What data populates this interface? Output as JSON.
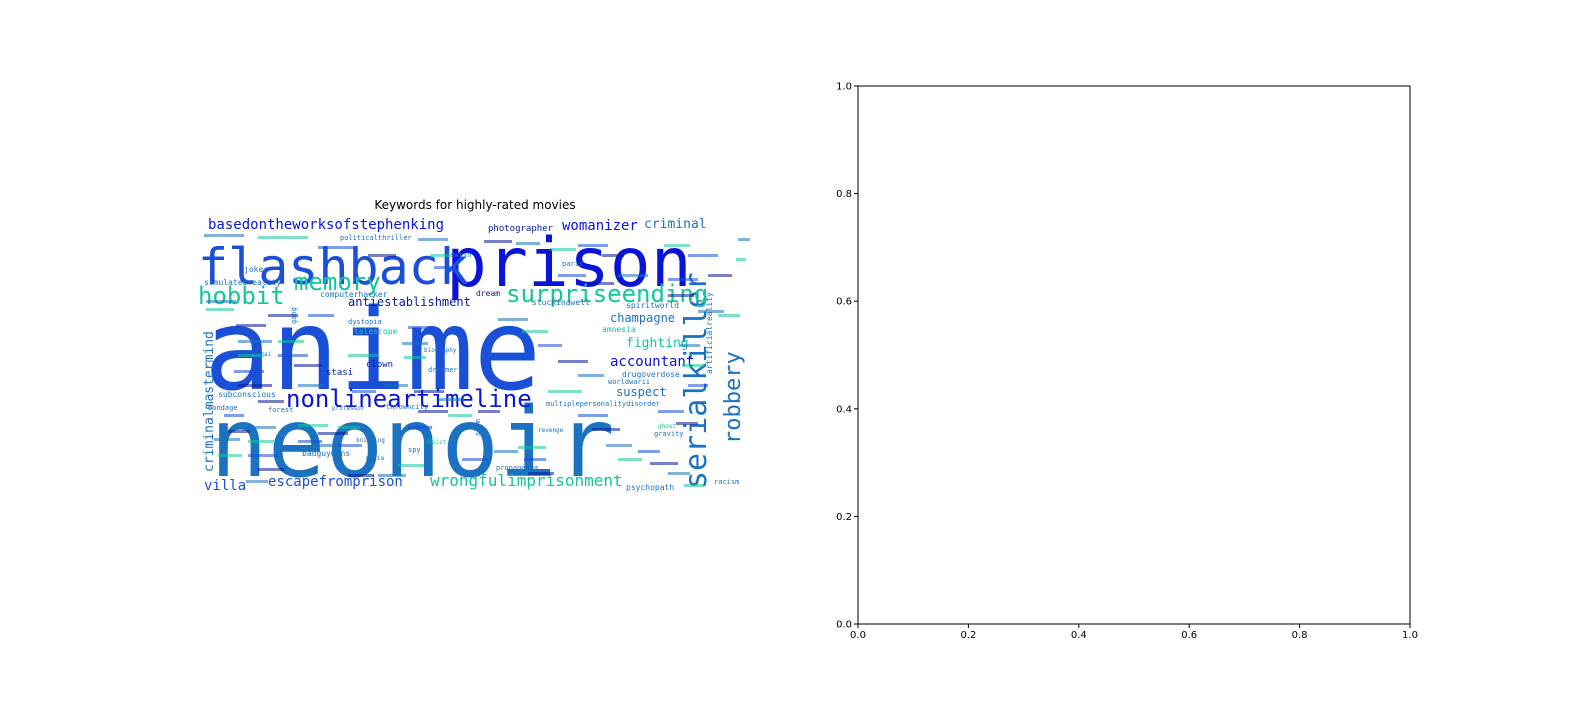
{
  "chart_data": [
    {
      "type": "wordcloud",
      "title": "Keywords for highly-rated movies",
      "colors": {
        "dark_blue": "#0a14d8",
        "blue": "#1a4fd8",
        "steel_blue": "#1a72c0",
        "teal": "#12c79a",
        "navy": "#0a1a9a"
      },
      "words": [
        {
          "text": "anime",
          "color": "#1a4fd8"
        },
        {
          "text": "neonoir",
          "color": "#1a72c0"
        },
        {
          "text": "prison",
          "color": "#0a14d8"
        },
        {
          "text": "flashback",
          "color": "#1a4fd8"
        },
        {
          "text": "serialkiller",
          "color": "#1a72c0"
        },
        {
          "text": "surpriseending",
          "color": "#12c79a"
        },
        {
          "text": "nonlineartimeline",
          "color": "#0a14d8"
        },
        {
          "text": "memory",
          "color": "#12c79a"
        },
        {
          "text": "hobbit",
          "color": "#12c79a"
        },
        {
          "text": "robbery",
          "color": "#1a72c0"
        },
        {
          "text": "wrongfulimprisonment",
          "color": "#12c79a"
        },
        {
          "text": "escapefromprison",
          "color": "#1a4fd8"
        },
        {
          "text": "basedontheworksofstephenking",
          "color": "#0a14d8"
        },
        {
          "text": "criminalmastermind",
          "color": "#1a72c0"
        },
        {
          "text": "womanizer",
          "color": "#0a14d8"
        },
        {
          "text": "criminal",
          "color": "#1a72c0"
        },
        {
          "text": "accountant",
          "color": "#0a14d8"
        },
        {
          "text": "champagne",
          "color": "#1a72c0"
        },
        {
          "text": "fighting",
          "color": "#12c79a"
        },
        {
          "text": "suspect",
          "color": "#1a72c0"
        },
        {
          "text": "villa",
          "color": "#1a4fd8"
        },
        {
          "text": "antiestablishment",
          "color": "#0a1a9a"
        },
        {
          "text": "photographer",
          "color": "#0a1a9a"
        },
        {
          "text": "simulatedreality",
          "color": "#1a72c0"
        },
        {
          "text": "computerhacker",
          "color": "#1a72c0"
        },
        {
          "text": "drugoverdose",
          "color": "#1a72c0"
        },
        {
          "text": "subconscious",
          "color": "#1a72c0"
        },
        {
          "text": "badguywins",
          "color": "#1a72c0"
        },
        {
          "text": "psychopath",
          "color": "#1a72c0"
        },
        {
          "text": "clown",
          "color": "#0a1a9a"
        },
        {
          "text": "stasi",
          "color": "#0a1a9a"
        },
        {
          "text": "spiritworld",
          "color": "#1a72c0"
        },
        {
          "text": "stuckinawell",
          "color": "#1a72c0"
        },
        {
          "text": "artificialreality",
          "color": "#1a72c0"
        },
        {
          "text": "joker",
          "color": "#1a72c0"
        },
        {
          "text": "dream",
          "color": "#0a1a9a"
        },
        {
          "text": "forest",
          "color": "#1a72c0"
        },
        {
          "text": "jewish",
          "color": "#1a72c0"
        },
        {
          "text": "spy",
          "color": "#1a72c0"
        },
        {
          "text": "slum",
          "color": "#1a72c0"
        },
        {
          "text": "bondage",
          "color": "#1a72c0"
        },
        {
          "text": "propaganda",
          "color": "#1a72c0"
        },
        {
          "text": "multiplepersonalitydisorder",
          "color": "#1a72c0"
        },
        {
          "text": "gang",
          "color": "#1a72c0"
        },
        {
          "text": "gravity",
          "color": "#1a72c0"
        },
        {
          "text": "paris",
          "color": "#1a72c0"
        },
        {
          "text": "racism",
          "color": "#1a72c0"
        },
        {
          "text": "politicalthriller",
          "color": "#1a72c0"
        },
        {
          "text": "dreamer",
          "color": "#1a72c0"
        },
        {
          "text": "throwncity",
          "color": "#1a72c0"
        },
        {
          "text": "dystopia",
          "color": "#1a72c0"
        },
        {
          "text": "worldwarii",
          "color": "#1a72c0"
        },
        {
          "text": "professor",
          "color": "#1a72c0"
        },
        {
          "text": "knitting",
          "color": "#1a72c0"
        },
        {
          "text": "amnesia",
          "color": "#12c79a"
        },
        {
          "text": "telescope",
          "color": "#12c79a"
        },
        {
          "text": "biography",
          "color": "#1a72c0"
        },
        {
          "text": "mafia",
          "color": "#1a72c0"
        },
        {
          "text": "heist",
          "color": "#12c79a"
        },
        {
          "text": "ghost",
          "color": "#12c79a"
        },
        {
          "text": "samurai",
          "color": "#1a72c0"
        },
        {
          "text": "revenge",
          "color": "#1a72c0"
        }
      ]
    },
    {
      "type": "empty_axes",
      "xlim": [
        0.0,
        1.0
      ],
      "ylim": [
        0.0,
        1.0
      ],
      "xticks": [
        "0.0",
        "0.2",
        "0.4",
        "0.6",
        "0.8",
        "1.0"
      ],
      "yticks": [
        "0.0",
        "0.2",
        "0.4",
        "0.6",
        "0.8",
        "1.0"
      ],
      "xtick_values": [
        0.0,
        0.2,
        0.4,
        0.6,
        0.8,
        1.0
      ],
      "ytick_values": [
        0.0,
        0.2,
        0.4,
        0.6,
        0.8,
        1.0
      ]
    }
  ]
}
